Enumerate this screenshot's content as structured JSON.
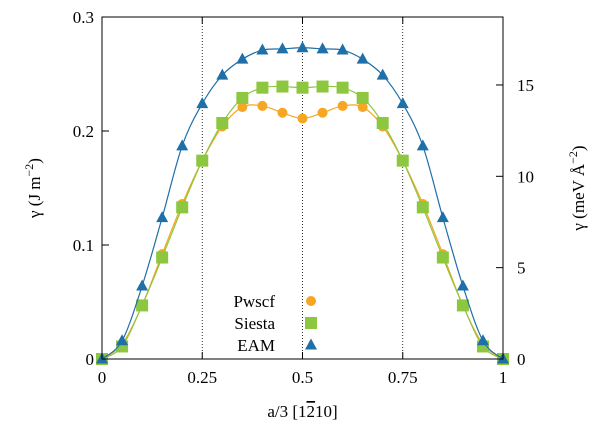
{
  "chart_data": {
    "type": "line",
    "xlabel_main": "a/3 [1",
    "xlabel_bar": "2",
    "xlabel_tail": "10]",
    "ylabel_left": "γ (J m",
    "ylabel_left_sup": "−2",
    "ylabel_left_tail": ")",
    "ylabel_right": "γ (meV Å",
    "ylabel_right_sup": "−2",
    "ylabel_right_tail": ")",
    "xlim": [
      0,
      1
    ],
    "ylim": [
      0,
      0.3
    ],
    "y2lim": [
      0,
      18.72
    ],
    "x_ticks": [
      0,
      0.25,
      0.5,
      0.75,
      1
    ],
    "x_tick_labels": [
      "0",
      "0.25",
      "0.5",
      "0.75",
      "1"
    ],
    "y_ticks": [
      0,
      0.1,
      0.2,
      0.3
    ],
    "y_tick_labels": [
      "0",
      "0.1",
      "0.2",
      "0.3"
    ],
    "y2_ticks": [
      0,
      5,
      10,
      15
    ],
    "y2_tick_labels": [
      "0",
      "5",
      "10",
      "15"
    ],
    "vertical_dotted_lines": [
      0.25,
      0.5,
      0.75
    ],
    "legend_position": "bottom-center",
    "series": [
      {
        "name": "Pwscf",
        "color": "#f5a623",
        "marker": "circle",
        "x": [
          0,
          0.05,
          0.1,
          0.15,
          0.2,
          0.25,
          0.3,
          0.35,
          0.4,
          0.45,
          0.5,
          0.55,
          0.6,
          0.65,
          0.7,
          0.75,
          0.8,
          0.85,
          0.9,
          0.95,
          1.0
        ],
        "y": [
          0,
          0.013,
          0.047,
          0.092,
          0.136,
          0.174,
          0.204,
          0.221,
          0.222,
          0.216,
          0.211,
          0.216,
          0.222,
          0.221,
          0.204,
          0.174,
          0.136,
          0.092,
          0.047,
          0.013,
          0
        ]
      },
      {
        "name": "Siesta",
        "color": "#8dc63f",
        "marker": "square",
        "x": [
          0,
          0.05,
          0.1,
          0.15,
          0.2,
          0.25,
          0.3,
          0.35,
          0.4,
          0.45,
          0.5,
          0.55,
          0.6,
          0.65,
          0.7,
          0.75,
          0.8,
          0.85,
          0.9,
          0.95,
          1.0
        ],
        "y": [
          0,
          0.011,
          0.047,
          0.089,
          0.133,
          0.174,
          0.207,
          0.229,
          0.238,
          0.239,
          0.238,
          0.239,
          0.238,
          0.229,
          0.207,
          0.174,
          0.133,
          0.089,
          0.047,
          0.011,
          0
        ]
      },
      {
        "name": "EAM",
        "color": "#1f6fa8",
        "marker": "triangle",
        "x": [
          0,
          0.05,
          0.1,
          0.15,
          0.2,
          0.25,
          0.3,
          0.35,
          0.4,
          0.45,
          0.5,
          0.55,
          0.6,
          0.65,
          0.7,
          0.75,
          0.8,
          0.85,
          0.9,
          0.95,
          1.0
        ],
        "y": [
          0,
          0.016,
          0.064,
          0.124,
          0.187,
          0.224,
          0.249,
          0.263,
          0.271,
          0.272,
          0.273,
          0.272,
          0.271,
          0.263,
          0.249,
          0.224,
          0.187,
          0.124,
          0.064,
          0.016,
          0
        ]
      }
    ]
  }
}
